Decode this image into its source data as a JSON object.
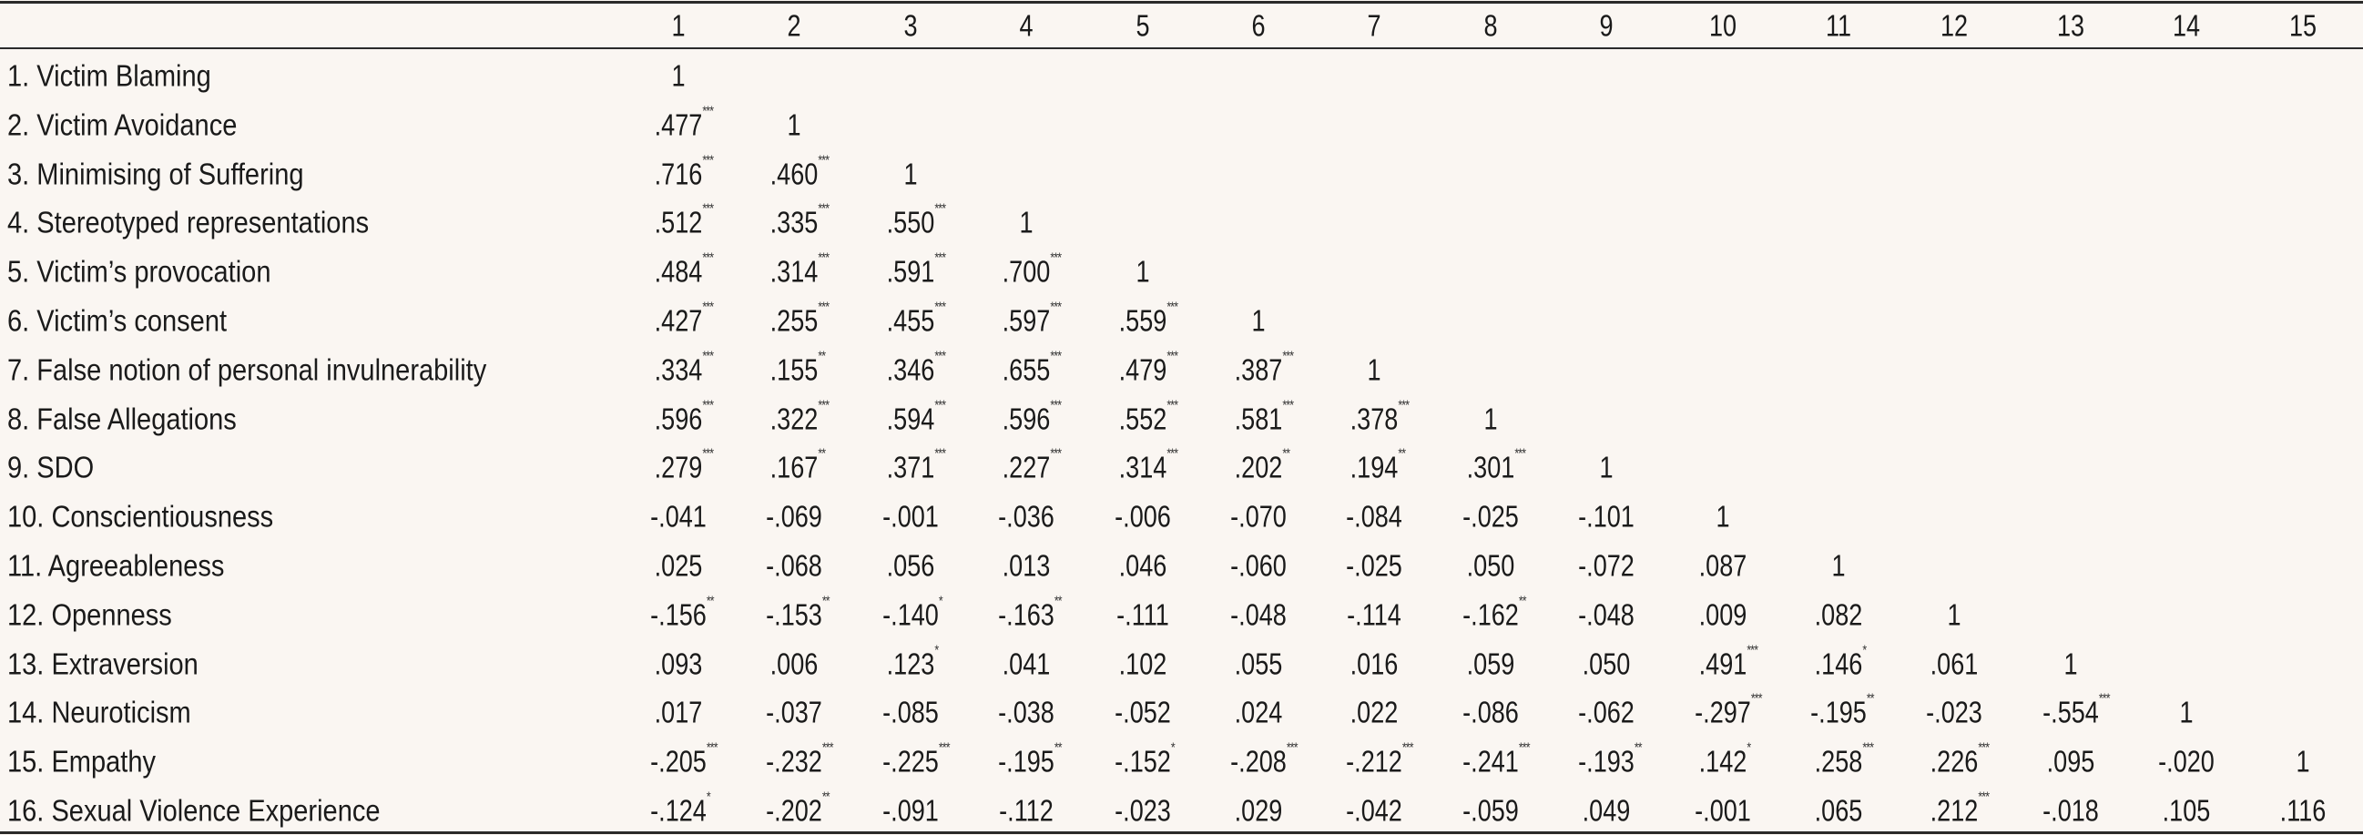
{
  "columns": [
    "1",
    "2",
    "3",
    "4",
    "5",
    "6",
    "7",
    "8",
    "9",
    "10",
    "11",
    "12",
    "13",
    "14",
    "15"
  ],
  "rows": [
    {
      "label": "1. Victim Blaming",
      "values": [
        "1"
      ]
    },
    {
      "label": "2. Victim Avoidance",
      "values": [
        ".477***",
        "1"
      ]
    },
    {
      "label": "3. Minimising of Suffering",
      "values": [
        ".716***",
        ".460***",
        "1"
      ]
    },
    {
      "label": "4. Stereotyped representations",
      "values": [
        ".512***",
        ".335***",
        ".550***",
        "1"
      ]
    },
    {
      "label": "5. Victim’s provocation",
      "values": [
        ".484***",
        ".314***",
        ".591***",
        ".700***",
        "1"
      ]
    },
    {
      "label": "6. Victim’s consent",
      "values": [
        ".427***",
        ".255***",
        ".455***",
        ".597***",
        ".559***",
        "1"
      ]
    },
    {
      "label": "7. False notion of personal invulnerability",
      "values": [
        ".334***",
        ".155**",
        ".346***",
        ".655***",
        ".479***",
        ".387***",
        "1"
      ]
    },
    {
      "label": "8. False Allegations",
      "values": [
        ".596***",
        ".322***",
        ".594***",
        ".596***",
        ".552***",
        ".581***",
        ".378***",
        "1"
      ]
    },
    {
      "label": "9. SDO",
      "values": [
        ".279***",
        ".167**",
        ".371***",
        ".227***",
        ".314***",
        ".202**",
        ".194**",
        ".301***",
        "1"
      ]
    },
    {
      "label": "10. Conscientiousness",
      "values": [
        "-.041",
        "-.069",
        "-.001",
        "-.036",
        "-.006",
        "-.070",
        "-.084",
        "-.025",
        "-.101",
        "1"
      ]
    },
    {
      "label": "11. Agreeableness",
      "values": [
        ".025",
        "-.068",
        ".056",
        ".013",
        ".046",
        "-.060",
        "-.025",
        ".050",
        "-.072",
        ".087",
        "1"
      ]
    },
    {
      "label": "12. Openness",
      "values": [
        "-.156**",
        "-.153**",
        "-.140*",
        "-.163**",
        "-.111",
        "-.048",
        "-.114",
        "-.162**",
        "-.048",
        ".009",
        ".082",
        "1"
      ]
    },
    {
      "label": "13. Extraversion",
      "values": [
        ".093",
        ".006",
        ".123*",
        ".041",
        ".102",
        ".055",
        ".016",
        ".059",
        ".050",
        ".491***",
        ".146*",
        ".061",
        "1"
      ]
    },
    {
      "label": "14. Neuroticism",
      "values": [
        ".017",
        "-.037",
        "-.085",
        "-.038",
        "-.052",
        ".024",
        ".022",
        "-.086",
        "-.062",
        "-.297***",
        "-.195**",
        "-.023",
        "-.554***",
        "1"
      ]
    },
    {
      "label": "15. Empathy",
      "values": [
        "-.205***",
        "-.232***",
        "-.225***",
        "-.195**",
        "-.152*",
        "-.208***",
        "-.212***",
        "-.241***",
        "-.193**",
        ".142*",
        ".258***",
        ".226***",
        ".095",
        "-.020",
        "1"
      ]
    },
    {
      "label": "16. Sexual Violence Experience",
      "values": [
        "-.124*",
        "-.202**",
        "-.091",
        "-.112",
        "-.023",
        ".029",
        "-.042",
        "-.059",
        ".049",
        "-.001",
        ".065",
        ".212***",
        "-.018",
        ".105",
        ".116"
      ]
    }
  ]
}
